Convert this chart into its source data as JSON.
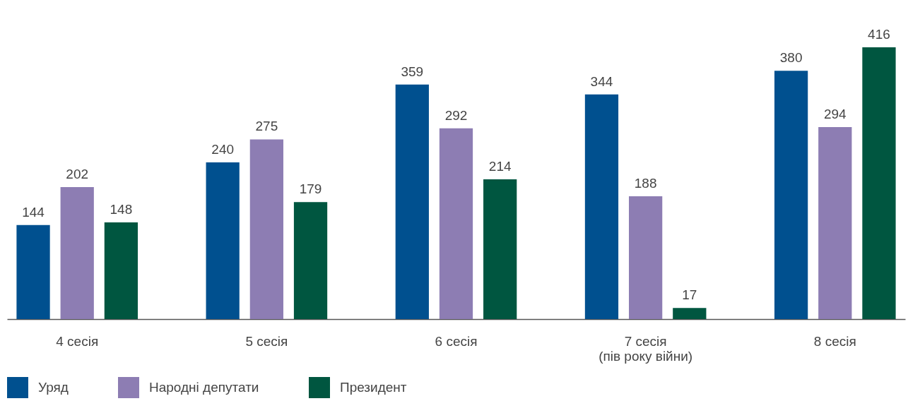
{
  "chart_data": {
    "type": "bar",
    "categories": [
      "4 сесія",
      "5 сесія",
      "6 сесія",
      "7 сесія\n(пів року війни)",
      "8 сесія"
    ],
    "series": [
      {
        "name": "Уряд",
        "color": "#00508f",
        "values": [
          144,
          240,
          359,
          344,
          380
        ]
      },
      {
        "name": "Народні депутати",
        "color": "#8d7db3",
        "values": [
          202,
          275,
          292,
          188,
          294
        ]
      },
      {
        "name": "Президент",
        "color": "#005640",
        "values": [
          148,
          179,
          214,
          17,
          416
        ]
      }
    ],
    "data_labels": true,
    "grid": false,
    "legend": "bottom left"
  }
}
